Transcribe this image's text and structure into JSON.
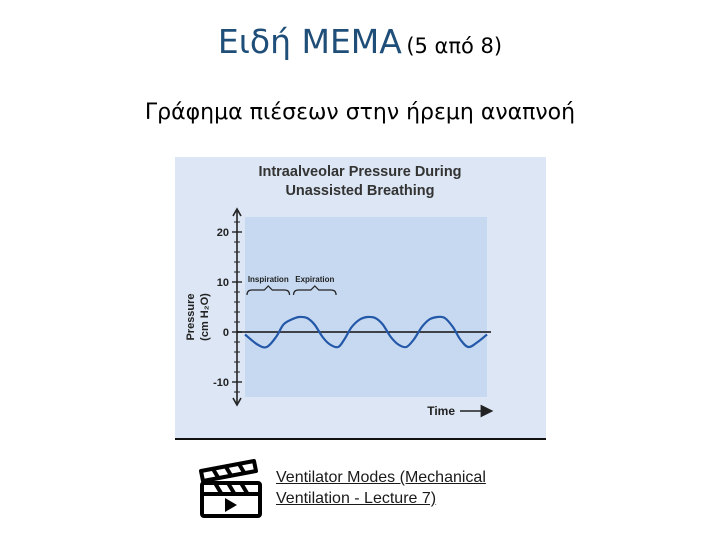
{
  "slide": {
    "title_main": "Ειδή ΜΕΜΑ",
    "title_sub": "(5 από 8)",
    "subtitle": "Γράφημα πιέσεων στην ήρεμη αναπνοή"
  },
  "link": {
    "line1": "Ventilator Modes (Mechanical",
    "line2": "Ventilation - Lecture 7)"
  },
  "icons": {
    "video": "clapperboard-play-icon"
  },
  "colors": {
    "title": "#1f4e79",
    "chart_background": "#dce6f4",
    "plot_background": "#c6d9f1",
    "curve": "#2357a8"
  },
  "chart_data": {
    "type": "line",
    "title_line1": "Intraalveolar Pressure During",
    "title_line2": "Unassisted Breathing",
    "xlabel": "Time",
    "ylabel": "Pressure",
    "yunit": "(cm H₂O)",
    "ylim": [
      -13,
      23
    ],
    "yticks": [
      20,
      10,
      0,
      -10
    ],
    "grid": false,
    "phase_labels": [
      "Inspiration",
      "Expiration"
    ],
    "series": [
      {
        "x": [
          0,
          0.2,
          0.35,
          0.5,
          0.62,
          0.75,
          0.87,
          1.0,
          1.12,
          1.25,
          1.37,
          1.5,
          1.6,
          1.72,
          1.85,
          1.97,
          2.1,
          2.22,
          2.35,
          2.47,
          2.6,
          2.72,
          2.85,
          2.97,
          3.1,
          3.22,
          3.35,
          3.47,
          3.6,
          3.75,
          3.9
        ],
        "y": [
          -0.5,
          -2.5,
          -3.0,
          -1.0,
          1.5,
          2.5,
          3.0,
          2.8,
          1.5,
          -1.0,
          -2.5,
          -3.0,
          -1.5,
          1.0,
          2.5,
          3.0,
          2.8,
          1.5,
          -1.0,
          -2.5,
          -3.0,
          -1.5,
          1.0,
          2.5,
          3.0,
          2.8,
          1.0,
          -1.5,
          -3.0,
          -2.0,
          -0.5
        ]
      }
    ]
  }
}
